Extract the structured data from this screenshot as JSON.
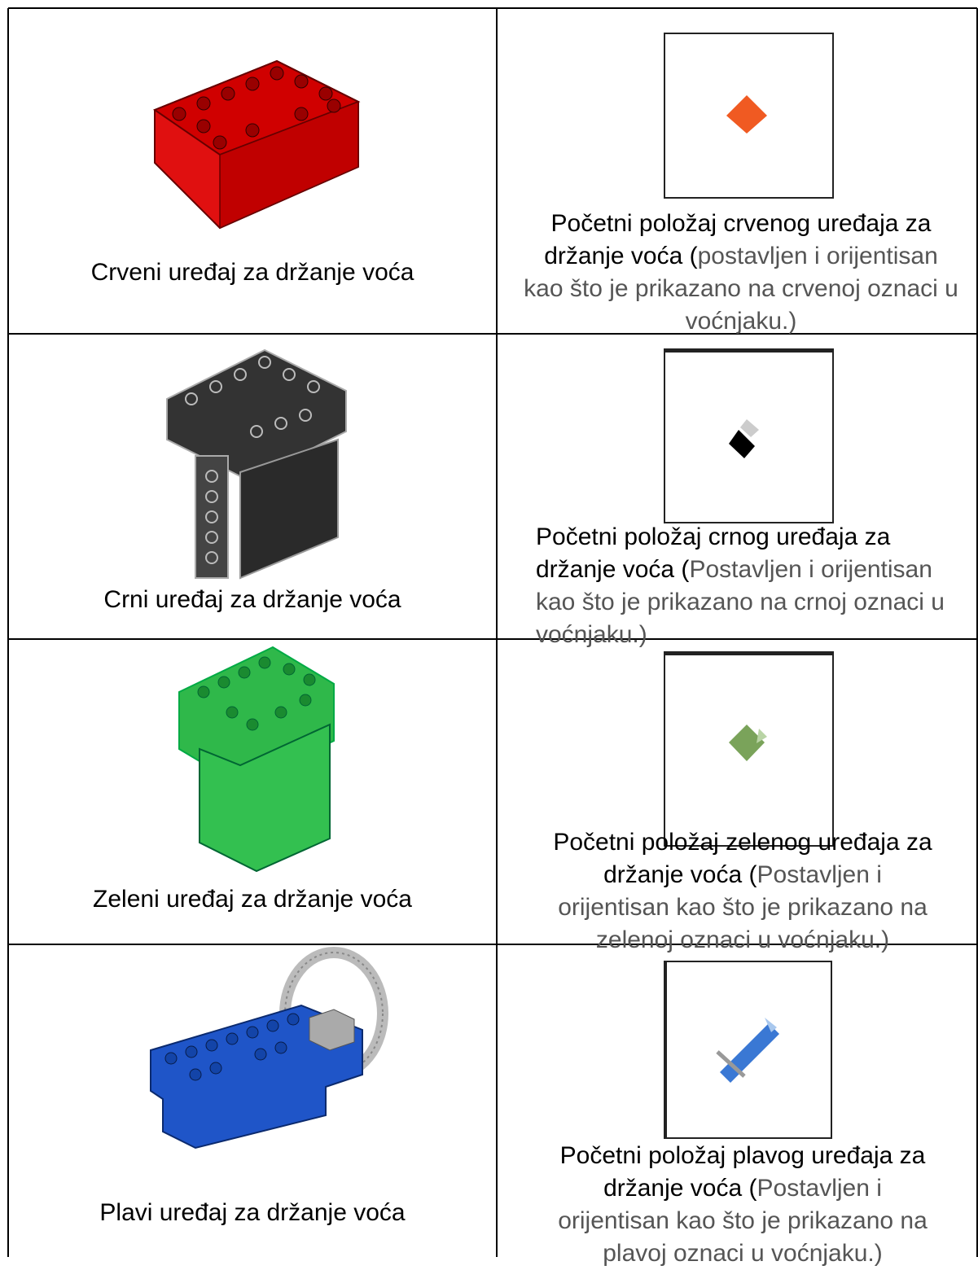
{
  "rows": [
    {
      "device_label": "Crveni uređaj za držanje voća",
      "position_text": "Početni položaj crvenog uređaja za držanje voća (",
      "position_note": "postavljen i orijentisan kao što je prikazano na crvenoj oznaci u  voćnjaku.)"
    },
    {
      "device_label": "Crni uređaj za držanje voća",
      "position_text": "Početni položaj crnog uređaja za držanje voća (",
      "position_note": "Postavljen i orijentisan kao što je prikazano na crnoj oznaci u voćnjaku.)"
    },
    {
      "device_label": "Zeleni uređaj za držanje voća",
      "position_text": "Početni položaj zelenog uređaja za držanje voća (",
      "position_note": "Postavljen i orijentisan kao što je prikazano na zelenoj oznaci u voćnjaku.)"
    },
    {
      "device_label": "Plavi uređaj za držanje voća",
      "position_text": "Početni položaj plavog uređaja za držanje voća (",
      "position_note": "Postavljen i orijentisan kao što je prikazano na plavoj oznaci u voćnjaku.)"
    }
  ]
}
